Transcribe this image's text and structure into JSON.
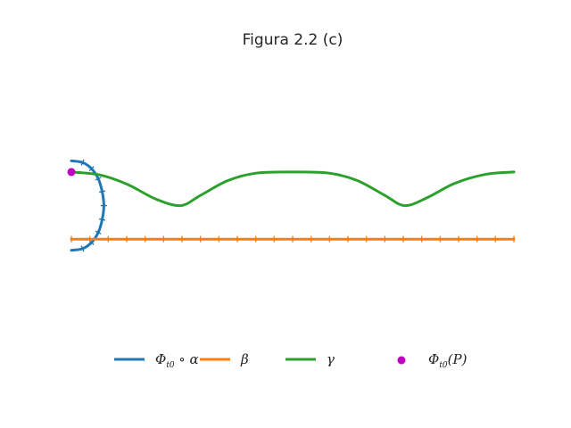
{
  "chart_data": {
    "type": "line",
    "title": "Figura 2.2 (c)",
    "xlabel": "",
    "ylabel": "",
    "xlim": [
      0,
      7.9
    ],
    "ylim": [
      -2.35,
      2.4
    ],
    "grid": false,
    "axes_visible": false,
    "legend_position": "bottom",
    "series": [
      {
        "name": "Φt0 ∘ α",
        "label_main": "Φ",
        "label_sub": "t0",
        "label_rest": " ∘ α",
        "color": "#1f77b4",
        "markers": "ticks",
        "points": [
          [
            0,
            0.8
          ],
          [
            0.2,
            0.77
          ],
          [
            0.36,
            0.66
          ],
          [
            0.48,
            0.48
          ],
          [
            0.55,
            0.25
          ],
          [
            0.58,
            0
          ],
          [
            0.55,
            -0.25
          ],
          [
            0.48,
            -0.48
          ],
          [
            0.36,
            -0.66
          ],
          [
            0.2,
            -0.77
          ],
          [
            0,
            -0.8
          ]
        ]
      },
      {
        "name": "β",
        "label_main": "β",
        "label_sub": "",
        "label_rest": "",
        "color": "#ff7f0e",
        "markers": "ticks",
        "points": [
          [
            0,
            -0.6
          ],
          [
            7.9,
            -0.6
          ]
        ]
      },
      {
        "name": "γ",
        "label_main": "γ",
        "label_sub": "",
        "label_rest": "",
        "color": "#2ca02c",
        "markers": "none",
        "points": [
          [
            0,
            0.6
          ],
          [
            0.5,
            0.55
          ],
          [
            1.0,
            0.38
          ],
          [
            1.5,
            0.12
          ],
          [
            1.95,
            0.0
          ],
          [
            2.3,
            0.18
          ],
          [
            2.8,
            0.45
          ],
          [
            3.3,
            0.58
          ],
          [
            3.95,
            0.6
          ],
          [
            4.6,
            0.58
          ],
          [
            5.1,
            0.45
          ],
          [
            5.6,
            0.18
          ],
          [
            5.95,
            0.0
          ],
          [
            6.35,
            0.14
          ],
          [
            6.85,
            0.4
          ],
          [
            7.4,
            0.56
          ],
          [
            7.9,
            0.6
          ]
        ]
      },
      {
        "name": "Φt0(P)",
        "label_main": "Φ",
        "label_sub": "t0",
        "label_rest": "(P)",
        "color": "#bf00bf",
        "markers": "point",
        "points": [
          [
            0,
            0.6
          ]
        ]
      }
    ]
  }
}
